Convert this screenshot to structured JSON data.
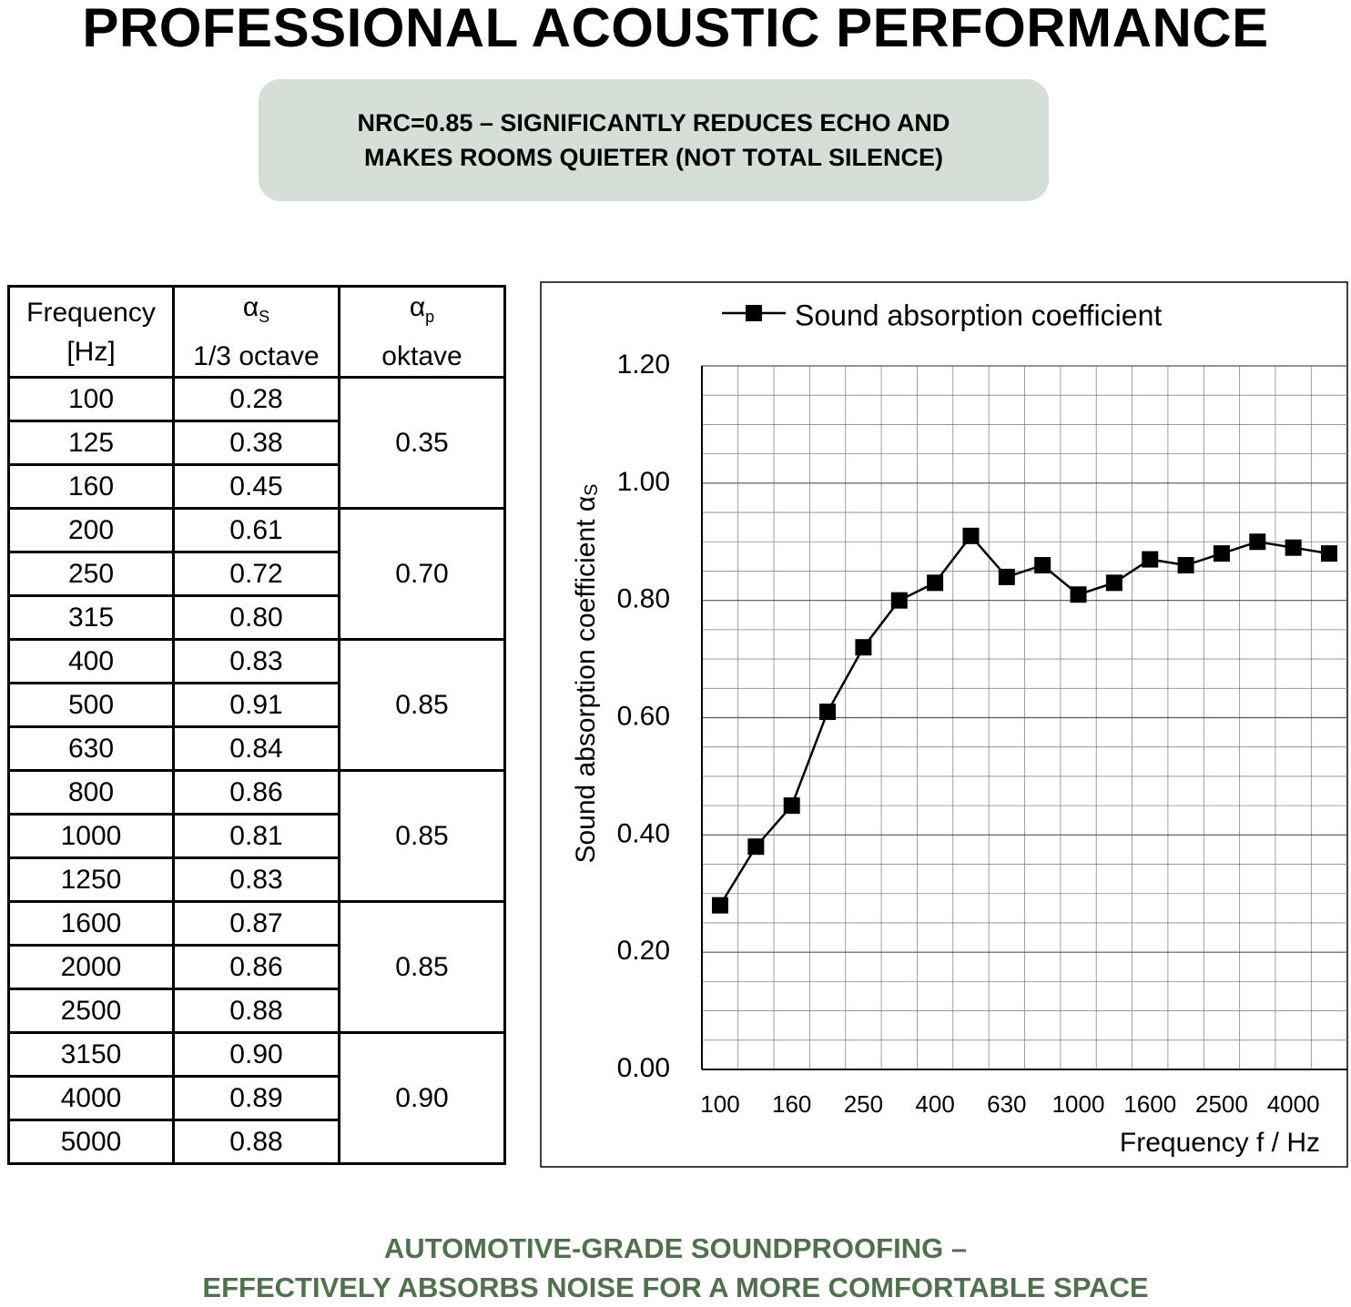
{
  "header": {
    "title": "PROFESSIONAL ACOUSTIC PERFORMANCE",
    "banner": [
      "NRC=0.85 – SIGNIFICANTLY REDUCES ECHO AND",
      "MAKES ROOMS QUIETER (NOT TOTAL SILENCE)"
    ]
  },
  "table": {
    "header": [
      {
        "lines": [
          "Frequency",
          "[Hz]"
        ]
      },
      {
        "symbol": "α",
        "sub": "S",
        "line": "1/3 octave"
      },
      {
        "symbol": "α",
        "sub": "p",
        "line": "oktave"
      }
    ],
    "groups": [
      {
        "value": "0.35",
        "rows": [
          [
            "100",
            "0.28"
          ],
          [
            "125",
            "0.38"
          ],
          [
            "160",
            "0.45"
          ]
        ]
      },
      {
        "value": "0.70",
        "rows": [
          [
            "200",
            "0.61"
          ],
          [
            "250",
            "0.72"
          ],
          [
            "315",
            "0.80"
          ]
        ]
      },
      {
        "value": "0.85",
        "rows": [
          [
            "400",
            "0.83"
          ],
          [
            "500",
            "0.91"
          ],
          [
            "630",
            "0.84"
          ]
        ]
      },
      {
        "value": "0.85",
        "rows": [
          [
            "800",
            "0.86"
          ],
          [
            "1000",
            "0.81"
          ],
          [
            "1250",
            "0.83"
          ]
        ]
      },
      {
        "value": "0.85",
        "rows": [
          [
            "1600",
            "0.87"
          ],
          [
            "2000",
            "0.86"
          ],
          [
            "2500",
            "0.88"
          ]
        ]
      },
      {
        "value": "0.90",
        "rows": [
          [
            "3150",
            "0.90"
          ],
          [
            "4000",
            "0.89"
          ],
          [
            "5000",
            "0.88"
          ]
        ]
      }
    ]
  },
  "chart_data": {
    "type": "line",
    "xlabel": "Frequency f / Hz",
    "ylabel": "Sound absorption coefficient α",
    "ylabel_subscript": "S",
    "categories": [
      100,
      null,
      160,
      null,
      250,
      null,
      400,
      null,
      630,
      null,
      1000,
      null,
      1600,
      null,
      2500,
      null,
      4000,
      null
    ],
    "series": [
      {
        "name": "Sound absorption coefficient",
        "color": "#000000",
        "values": [
          0.28,
          0.38,
          0.45,
          0.61,
          0.72,
          0.8,
          0.83,
          0.91,
          0.84,
          0.86,
          0.81,
          0.83,
          0.87,
          0.86,
          0.88,
          0.9,
          0.89,
          0.88
        ]
      }
    ],
    "ylim": [
      0,
      1.2
    ],
    "yticks": [
      {
        "value": 0,
        "label": "0.00"
      },
      {
        "value": 0.2,
        "label": "0.20"
      },
      {
        "value": 0.4,
        "label": "0.40"
      },
      {
        "value": 0.6,
        "label": "0.60"
      },
      {
        "value": 0.8,
        "label": "0.80"
      },
      {
        "value": 1.0,
        "label": "1.00"
      },
      {
        "value": 1.2,
        "label": "1.20"
      }
    ],
    "yminorticks": [
      0.05,
      0.1,
      0.15,
      0.25,
      0.3,
      0.35,
      0.45,
      0.5,
      0.55,
      0.65,
      0.7,
      0.75,
      0.85,
      0.9,
      0.95,
      1.05,
      1.1,
      1.15
    ],
    "grid": true,
    "legend": "top"
  },
  "footer": {
    "lines": [
      "AUTOMOTIVE-GRADE SOUNDPROOFING –",
      "EFFECTIVELY ABSORBS NOISE FOR A MORE COMFORTABLE SPACE"
    ],
    "color": "#52704f"
  }
}
